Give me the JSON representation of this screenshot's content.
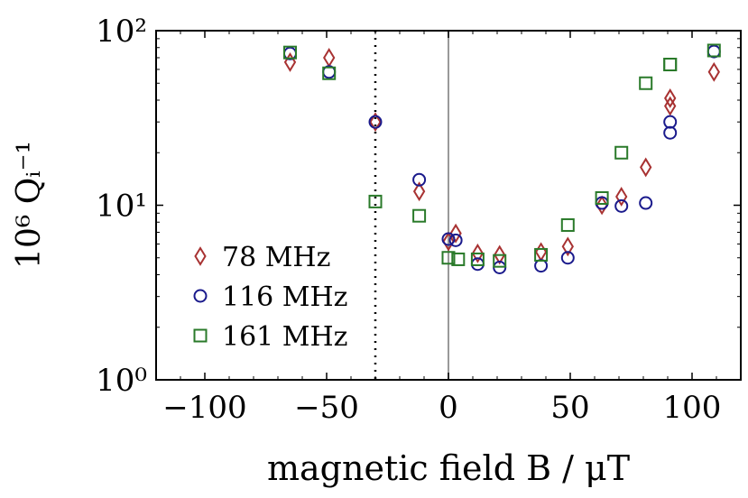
{
  "chart_data": {
    "type": "scatter",
    "title": "",
    "xlabel": "magnetic field B / μT",
    "ylabel": "10⁶ Qᵢ⁻¹",
    "xlim": [
      -120,
      120
    ],
    "ylim": [
      1,
      100
    ],
    "yscale": "log",
    "grid": false,
    "legend_position": "lower-left",
    "x_ticks": [
      -100,
      -50,
      0,
      50,
      100
    ],
    "x_tick_labels": [
      "−100",
      "−50",
      "0",
      "50",
      "100"
    ],
    "y_ticks": [
      1,
      10,
      100
    ],
    "y_tick_labels": [
      "10⁰",
      "10¹",
      "10²"
    ],
    "reference_lines": [
      {
        "x": 0,
        "style": "solid",
        "color": "#999999"
      },
      {
        "x": -30,
        "style": "dotted",
        "color": "#000000"
      }
    ],
    "series": [
      {
        "name": "78 MHz",
        "marker": "diamond",
        "color": "#a83232",
        "points": [
          [
            -65,
            66
          ],
          [
            -49,
            70
          ],
          [
            -30,
            30
          ],
          [
            -12,
            12
          ],
          [
            0,
            6.2
          ],
          [
            3,
            6.9
          ],
          [
            12,
            5.3
          ],
          [
            21,
            5.2
          ],
          [
            38,
            5.4
          ],
          [
            49,
            5.8
          ],
          [
            63,
            10
          ],
          [
            71,
            11.2
          ],
          [
            81,
            16.5
          ],
          [
            91,
            41
          ],
          [
            91,
            37
          ],
          [
            109,
            58
          ]
        ]
      },
      {
        "name": "116 MHz",
        "marker": "circle",
        "color": "#1a1a8c",
        "points": [
          [
            -65,
            74
          ],
          [
            -49,
            58
          ],
          [
            -30,
            30
          ],
          [
            -12,
            14
          ],
          [
            0,
            6.4
          ],
          [
            3,
            6.3
          ],
          [
            12,
            4.6
          ],
          [
            21,
            4.4
          ],
          [
            38,
            4.5
          ],
          [
            49,
            5
          ],
          [
            63,
            10.3
          ],
          [
            71,
            9.9
          ],
          [
            81,
            10.3
          ],
          [
            91,
            30
          ],
          [
            91,
            26
          ],
          [
            109,
            76
          ]
        ]
      },
      {
        "name": "161 MHz",
        "marker": "square",
        "color": "#2a7a2a",
        "points": [
          [
            -65,
            75
          ],
          [
            -49,
            57
          ],
          [
            -30,
            10.5
          ],
          [
            -12,
            8.7
          ],
          [
            0,
            5
          ],
          [
            4,
            4.9
          ],
          [
            12,
            4.9
          ],
          [
            21,
            4.8
          ],
          [
            38,
            5.2
          ],
          [
            49,
            7.7
          ],
          [
            63,
            11
          ],
          [
            71,
            20
          ],
          [
            81,
            50
          ],
          [
            91,
            64
          ],
          [
            91,
            64
          ],
          [
            109,
            77
          ]
        ]
      }
    ]
  }
}
